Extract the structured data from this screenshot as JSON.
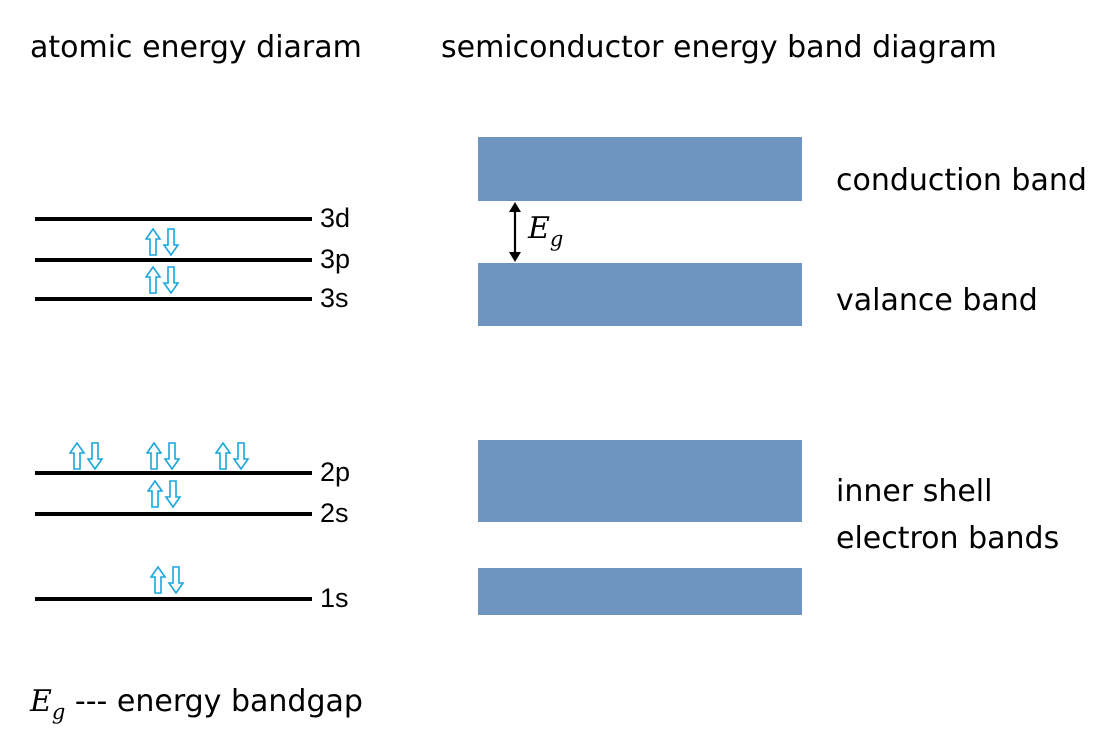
{
  "titles": {
    "atomic": "atomic energy diaram",
    "band": "semiconductor energy band diagram"
  },
  "atomic_levels": [
    {
      "label": "3d",
      "pairs": 0
    },
    {
      "label": "3p",
      "pairs": 1
    },
    {
      "label": "3s",
      "pairs": 1
    },
    {
      "label": "2p",
      "pairs": 3
    },
    {
      "label": "2s",
      "pairs": 1
    },
    {
      "label": "1s",
      "pairs": 1
    }
  ],
  "bands": [
    {
      "name": "conduction band"
    },
    {
      "name": "valance band"
    },
    {
      "name": "inner shell electron bands",
      "lines": [
        "inner shell",
        "electron bands"
      ]
    }
  ],
  "bandgap": {
    "symbol": "E",
    "subscript": "g"
  },
  "legend": {
    "symbol": "E",
    "subscript": "g",
    "text": " --- energy bandgap"
  },
  "colors": {
    "band": "#7094c0",
    "electron_arrow": "#1aa6dc",
    "line": "#000000"
  }
}
